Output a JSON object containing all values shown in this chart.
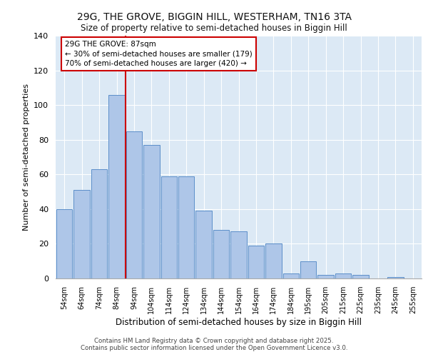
{
  "title_line1": "29G, THE GROVE, BIGGIN HILL, WESTERHAM, TN16 3TA",
  "title_line2": "Size of property relative to semi-detached houses in Biggin Hill",
  "xlabel": "Distribution of semi-detached houses by size in Biggin Hill",
  "ylabel": "Number of semi-detached properties",
  "bar_labels": [
    "54sqm",
    "64sqm",
    "74sqm",
    "84sqm",
    "94sqm",
    "104sqm",
    "114sqm",
    "124sqm",
    "134sqm",
    "144sqm",
    "154sqm",
    "164sqm",
    "174sqm",
    "184sqm",
    "195sqm",
    "205sqm",
    "215sqm",
    "225sqm",
    "235sqm",
    "245sqm",
    "255sqm"
  ],
  "bar_values": [
    40,
    51,
    63,
    106,
    85,
    77,
    59,
    59,
    39,
    28,
    27,
    19,
    20,
    3,
    10,
    2,
    3,
    2,
    0,
    1,
    0
  ],
  "bar_color": "#aec6e8",
  "bar_edge_color": "#5b8ec9",
  "property_bin_index": 3,
  "vline_color": "#cc0000",
  "annotation_title": "29G THE GROVE: 87sqm",
  "annotation_line1": "← 30% of semi-detached houses are smaller (179)",
  "annotation_line2": "70% of semi-detached houses are larger (420) →",
  "annotation_box_color": "#cc0000",
  "ylim": [
    0,
    140
  ],
  "yticks": [
    0,
    20,
    40,
    60,
    80,
    100,
    120,
    140
  ],
  "background_color": "#dce9f5",
  "footer_line1": "Contains HM Land Registry data © Crown copyright and database right 2025.",
  "footer_line2": "Contains public sector information licensed under the Open Government Licence v3.0."
}
